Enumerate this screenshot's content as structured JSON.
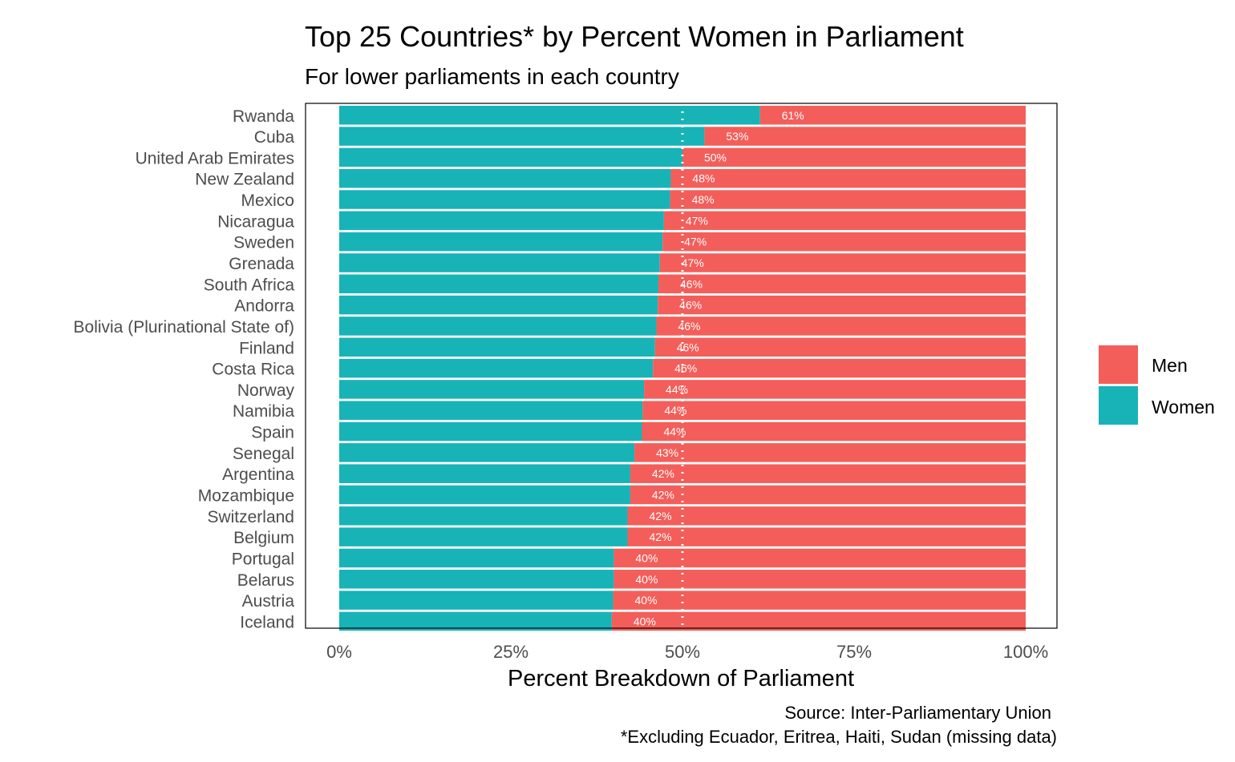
{
  "chart_data": {
    "type": "bar",
    "stacked": true,
    "orientation": "horizontal",
    "title": "Top 25 Countries* by Percent Women in Parliament",
    "subtitle": "For lower parliaments in each country",
    "xlabel": "Percent Breakdown of Parliament",
    "ylabel": "",
    "xlim": [
      0,
      1
    ],
    "x_ticks": [
      "0%",
      "25%",
      "50%",
      "75%",
      "100%"
    ],
    "x_tick_values": [
      0,
      0.25,
      0.5,
      0.75,
      1.0
    ],
    "reference_line": {
      "x": 0.5,
      "style": "dotted",
      "color": "#ffffff"
    },
    "caption": [
      "Source: Inter-Parliamentary Union",
      "*Excluding Ecuador, Eritrea, Haiti, Sudan (missing data)"
    ],
    "legend": {
      "position": "right",
      "entries": [
        {
          "name": "Men",
          "color": "#F8766D"
        },
        {
          "name": "Women",
          "color": "#00BFC4"
        }
      ]
    },
    "colors": {
      "Men": "#F35E5A",
      "Women": "#17B3B7"
    },
    "categories": [
      "Rwanda",
      "Cuba",
      "United Arab Emirates",
      "New Zealand",
      "Mexico",
      "Nicaragua",
      "Sweden",
      "Grenada",
      "South Africa",
      "Andorra",
      "Bolivia (Plurinational State of)",
      "Finland",
      "Costa Rica",
      "Norway",
      "Namibia",
      "Spain",
      "Senegal",
      "Argentina",
      "Mozambique",
      "Switzerland",
      "Belgium",
      "Portugal",
      "Belarus",
      "Austria",
      "Iceland"
    ],
    "series": [
      {
        "name": "Women",
        "values": [
          0.613,
          0.532,
          0.5,
          0.483,
          0.482,
          0.473,
          0.471,
          0.467,
          0.465,
          0.464,
          0.462,
          0.46,
          0.457,
          0.444,
          0.442,
          0.441,
          0.43,
          0.424,
          0.424,
          0.42,
          0.42,
          0.4,
          0.4,
          0.399,
          0.397
        ]
      },
      {
        "name": "Men",
        "values": [
          0.387,
          0.468,
          0.5,
          0.517,
          0.518,
          0.527,
          0.529,
          0.533,
          0.535,
          0.536,
          0.538,
          0.54,
          0.543,
          0.556,
          0.558,
          0.559,
          0.57,
          0.576,
          0.576,
          0.58,
          0.58,
          0.6,
          0.6,
          0.601,
          0.603
        ]
      }
    ],
    "labels": [
      "61%",
      "53%",
      "50%",
      "48%",
      "48%",
      "47%",
      "47%",
      "47%",
      "46%",
      "46%",
      "46%",
      "46%",
      "46%",
      "44%",
      "44%",
      "44%",
      "43%",
      "42%",
      "42%",
      "42%",
      "42%",
      "40%",
      "40%",
      "40%",
      "40%"
    ]
  }
}
